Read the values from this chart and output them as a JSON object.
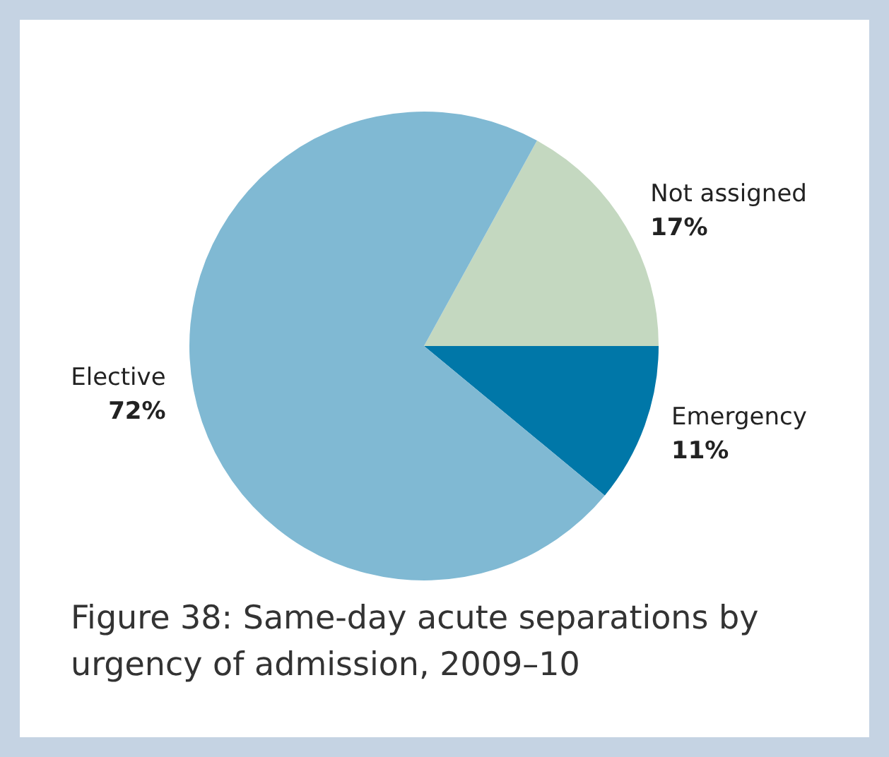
{
  "chart_data": {
    "type": "pie",
    "title": "Figure 38: Same-day acute separations by urgency of admission, 2009–10",
    "categories": [
      "Not assigned",
      "Emergency",
      "Elective"
    ],
    "values": [
      17,
      11,
      72
    ],
    "value_labels": [
      "17%",
      "11%",
      "72%"
    ],
    "colors": [
      "#c4d8c0",
      "#0077a8",
      "#80b9d3"
    ],
    "legend": false
  }
}
